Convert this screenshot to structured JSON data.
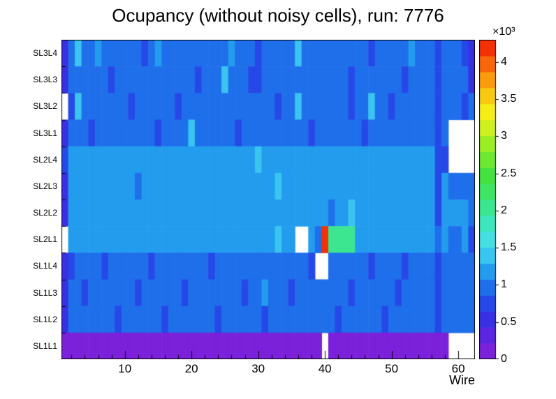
{
  "chart_data": {
    "type": "heatmap",
    "title": "Ocupancy (without noisy cells), run: 7776",
    "xlabel": "Wire",
    "scale_label": "×10³",
    "n_cols": 62,
    "x_axis_range": [
      0.5,
      62.5
    ],
    "x_ticks": [
      10,
      20,
      30,
      40,
      50,
      60
    ],
    "x_minor_tick_step": 2,
    "rows_top_to_bottom": [
      "SL3L4",
      "SL3L3",
      "SL3L2",
      "SL3L1",
      "SL2L4",
      "SL2L3",
      "SL2L2",
      "SL2L1",
      "SL1L4",
      "SL1L3",
      "SL1L2",
      "SL1L1"
    ],
    "zmax": 4300,
    "colorbar_ticks": [
      0,
      0.5,
      1,
      1.5,
      2,
      2.5,
      3,
      3.5,
      4
    ],
    "colorbar_tick_unit": 1000,
    "n_color_levels": 20,
    "grid": false,
    "legend_position": "right-colorbar",
    "palette_stops": [
      [
        0.0,
        "#871ed7"
      ],
      [
        0.05,
        "#6e23dc"
      ],
      [
        0.1,
        "#4628e1"
      ],
      [
        0.16,
        "#283ce6"
      ],
      [
        0.23,
        "#1e73eb"
      ],
      [
        0.28,
        "#23a0ee"
      ],
      [
        0.33,
        "#3cc8f0"
      ],
      [
        0.38,
        "#46e1e1"
      ],
      [
        0.44,
        "#3ce6b4"
      ],
      [
        0.5,
        "#3ce678"
      ],
      [
        0.58,
        "#46e13c"
      ],
      [
        0.65,
        "#82eb28"
      ],
      [
        0.72,
        "#c8f01e"
      ],
      [
        0.77,
        "#f5f019"
      ],
      [
        0.84,
        "#f8be0f"
      ],
      [
        0.9,
        "#fa820a"
      ],
      [
        1.0,
        "#f01405"
      ]
    ],
    "values": [
      [
        600,
        1000,
        1300,
        1050,
        1020,
        1080,
        1050,
        1000,
        1060,
        1030,
        1050,
        1020,
        820,
        1050,
        1080,
        1030,
        1050,
        1000,
        1060,
        1030,
        1050,
        1020,
        1060,
        1030,
        1050,
        1250,
        1050,
        1000,
        860,
        850,
        1050,
        1020,
        1060,
        1030,
        1050,
        1300,
        1050,
        1000,
        1060,
        1030,
        1050,
        1020,
        1060,
        1030,
        1050,
        1020,
        800,
        1030,
        1050,
        1000,
        1060,
        1030,
        1250,
        1020,
        1060,
        1030,
        700,
        1000,
        1060,
        1030,
        850,
        500
      ],
      [
        550,
        950,
        1050,
        1020,
        1060,
        1030,
        1050,
        820,
        1060,
        1030,
        1050,
        1020,
        1060,
        1030,
        1050,
        1000,
        1060,
        1030,
        1050,
        1020,
        830,
        1030,
        1050,
        1020,
        1350,
        1030,
        1050,
        1000,
        800,
        810,
        1050,
        1020,
        1060,
        1030,
        1050,
        1020,
        1060,
        1030,
        1050,
        1000,
        1060,
        1030,
        1050,
        820,
        1060,
        1030,
        1050,
        1020,
        1060,
        1030,
        1050,
        830,
        1060,
        1030,
        1050,
        1020,
        700,
        1030,
        1050,
        1020,
        950,
        600
      ],
      [
        null,
        700,
        1300,
        1020,
        1060,
        1030,
        1050,
        1000,
        1060,
        1030,
        800,
        1020,
        1060,
        1030,
        1050,
        1020,
        1060,
        830,
        1050,
        1020,
        1060,
        1030,
        1050,
        1020,
        1060,
        1030,
        1050,
        1000,
        1060,
        1030,
        1050,
        1020,
        810,
        1030,
        1050,
        1320,
        1060,
        1030,
        1050,
        1020,
        1060,
        1030,
        1050,
        800,
        1060,
        1030,
        1350,
        1020,
        1060,
        820,
        1050,
        1020,
        1060,
        1030,
        1050,
        1020,
        720,
        1030,
        1050,
        1020,
        800,
        950
      ],
      [
        600,
        1000,
        1050,
        1020,
        830,
        1030,
        1050,
        1020,
        1060,
        1030,
        1050,
        1020,
        1060,
        1030,
        820,
        1030,
        1050,
        1020,
        1060,
        1300,
        1050,
        1020,
        1060,
        1030,
        1050,
        1020,
        800,
        1030,
        1050,
        1020,
        1060,
        1030,
        1050,
        1020,
        1060,
        1030,
        1050,
        820,
        1060,
        1030,
        1050,
        1020,
        1060,
        1030,
        1050,
        810,
        1060,
        1030,
        1050,
        1020,
        1060,
        1030,
        1050,
        1020,
        1060,
        1030,
        750,
        1020,
        null,
        null,
        null,
        null
      ],
      [
        650,
        1150,
        1180,
        1160,
        1200,
        1170,
        1180,
        1150,
        1190,
        1160,
        1180,
        1150,
        1190,
        1160,
        1180,
        1170,
        1190,
        1160,
        1180,
        1150,
        1190,
        1160,
        1180,
        1150,
        1190,
        1160,
        1180,
        1170,
        1190,
        1450,
        1180,
        1150,
        1190,
        1160,
        1180,
        1150,
        1190,
        1160,
        1180,
        1170,
        1190,
        1160,
        1180,
        1100,
        1190,
        1160,
        1180,
        1150,
        1190,
        1160,
        1180,
        1150,
        1190,
        1160,
        1180,
        1170,
        850,
        800,
        null,
        null,
        null,
        null
      ],
      [
        600,
        1100,
        1180,
        1160,
        1190,
        1170,
        1180,
        1150,
        1190,
        1160,
        1180,
        950,
        1190,
        1160,
        1180,
        1170,
        1190,
        1160,
        1180,
        1150,
        1190,
        1160,
        1180,
        1150,
        1190,
        1160,
        1180,
        1170,
        1190,
        1160,
        1180,
        1150,
        1350,
        1160,
        1180,
        1150,
        1190,
        1160,
        1180,
        1170,
        1190,
        1160,
        1180,
        1150,
        1190,
        1160,
        1180,
        1150,
        1190,
        1160,
        1180,
        1150,
        1190,
        1160,
        1180,
        1170,
        800,
        1100,
        1050,
        1000,
        1050,
        900
      ],
      [
        550,
        1150,
        1180,
        1160,
        1190,
        1170,
        1180,
        1150,
        1190,
        1160,
        1180,
        1150,
        1190,
        1160,
        1180,
        1170,
        1190,
        1160,
        1180,
        1150,
        1190,
        1160,
        1180,
        1150,
        1190,
        1160,
        1180,
        1170,
        1190,
        1160,
        1180,
        1150,
        1190,
        1160,
        1180,
        1150,
        1190,
        1160,
        1180,
        1170,
        1000,
        1160,
        1180,
        1400,
        1190,
        1160,
        1180,
        1150,
        1190,
        1160,
        1180,
        1150,
        1190,
        1160,
        1180,
        1170,
        820,
        1100,
        1150,
        1100,
        1150,
        950
      ],
      [
        null,
        1150,
        1180,
        1160,
        1190,
        1170,
        1180,
        1150,
        1190,
        1160,
        1180,
        1150,
        1190,
        1160,
        1180,
        1170,
        1190,
        1160,
        1180,
        1150,
        1190,
        1160,
        1180,
        1150,
        1190,
        1160,
        1180,
        1170,
        1190,
        1160,
        1180,
        1150,
        1450,
        1160,
        1180,
        null,
        null,
        1100,
        950,
        4200,
        2000,
        2000,
        1950,
        1950,
        1190,
        1160,
        1180,
        1150,
        1190,
        1160,
        1180,
        1150,
        1190,
        1160,
        1180,
        1170,
        900,
        1100,
        1050,
        1000,
        1100,
        850
      ],
      [
        600,
        850,
        1020,
        1050,
        1000,
        1060,
        820,
        1030,
        1050,
        1020,
        1060,
        1030,
        1050,
        830,
        1060,
        1030,
        1050,
        1020,
        1060,
        1030,
        1050,
        1020,
        810,
        1030,
        1050,
        1020,
        1060,
        1030,
        1050,
        1020,
        1060,
        1030,
        1050,
        1020,
        1060,
        1030,
        1050,
        750,
        null,
        null,
        1000,
        1030,
        1050,
        1020,
        1060,
        1030,
        820,
        1030,
        1050,
        1020,
        1060,
        830,
        1050,
        1020,
        1060,
        1030,
        720,
        1000,
        980,
        1000,
        950,
        900
      ],
      [
        580,
        900,
        1020,
        830,
        1000,
        1060,
        1030,
        1050,
        1020,
        1060,
        1030,
        820,
        1050,
        1020,
        1060,
        1030,
        1050,
        1020,
        830,
        1030,
        1050,
        1020,
        1060,
        1030,
        1050,
        1020,
        1060,
        810,
        1050,
        1020,
        1280,
        1030,
        1050,
        1020,
        820,
        1030,
        1050,
        1020,
        1060,
        1030,
        1050,
        1020,
        1060,
        800,
        1050,
        1020,
        1060,
        1030,
        1050,
        1020,
        830,
        1030,
        1050,
        1020,
        1060,
        1030,
        730,
        1020,
        1050,
        1000,
        1050,
        880
      ],
      [
        560,
        880,
        1030,
        1050,
        1020,
        1060,
        1030,
        1050,
        820,
        1030,
        1050,
        1020,
        1060,
        1030,
        1050,
        830,
        1060,
        1030,
        1050,
        1020,
        1060,
        1030,
        1050,
        810,
        1060,
        1030,
        1050,
        1020,
        1060,
        1030,
        820,
        1030,
        1050,
        1020,
        1060,
        1030,
        1050,
        1020,
        1060,
        1030,
        1050,
        800,
        1060,
        1030,
        1050,
        1020,
        1060,
        1030,
        830,
        1020,
        1050,
        1020,
        1060,
        1030,
        1050,
        1020,
        700,
        1030,
        1050,
        1020,
        1050,
        900
      ],
      [
        205,
        205,
        205,
        205,
        205,
        205,
        205,
        205,
        205,
        205,
        205,
        205,
        205,
        205,
        205,
        205,
        205,
        205,
        205,
        205,
        205,
        205,
        205,
        205,
        205,
        205,
        205,
        205,
        205,
        205,
        205,
        205,
        205,
        205,
        205,
        205,
        205,
        205,
        205,
        null,
        205,
        205,
        205,
        205,
        205,
        205,
        205,
        205,
        205,
        205,
        205,
        205,
        205,
        205,
        205,
        205,
        205,
        205,
        null,
        null,
        null,
        null
      ]
    ]
  }
}
